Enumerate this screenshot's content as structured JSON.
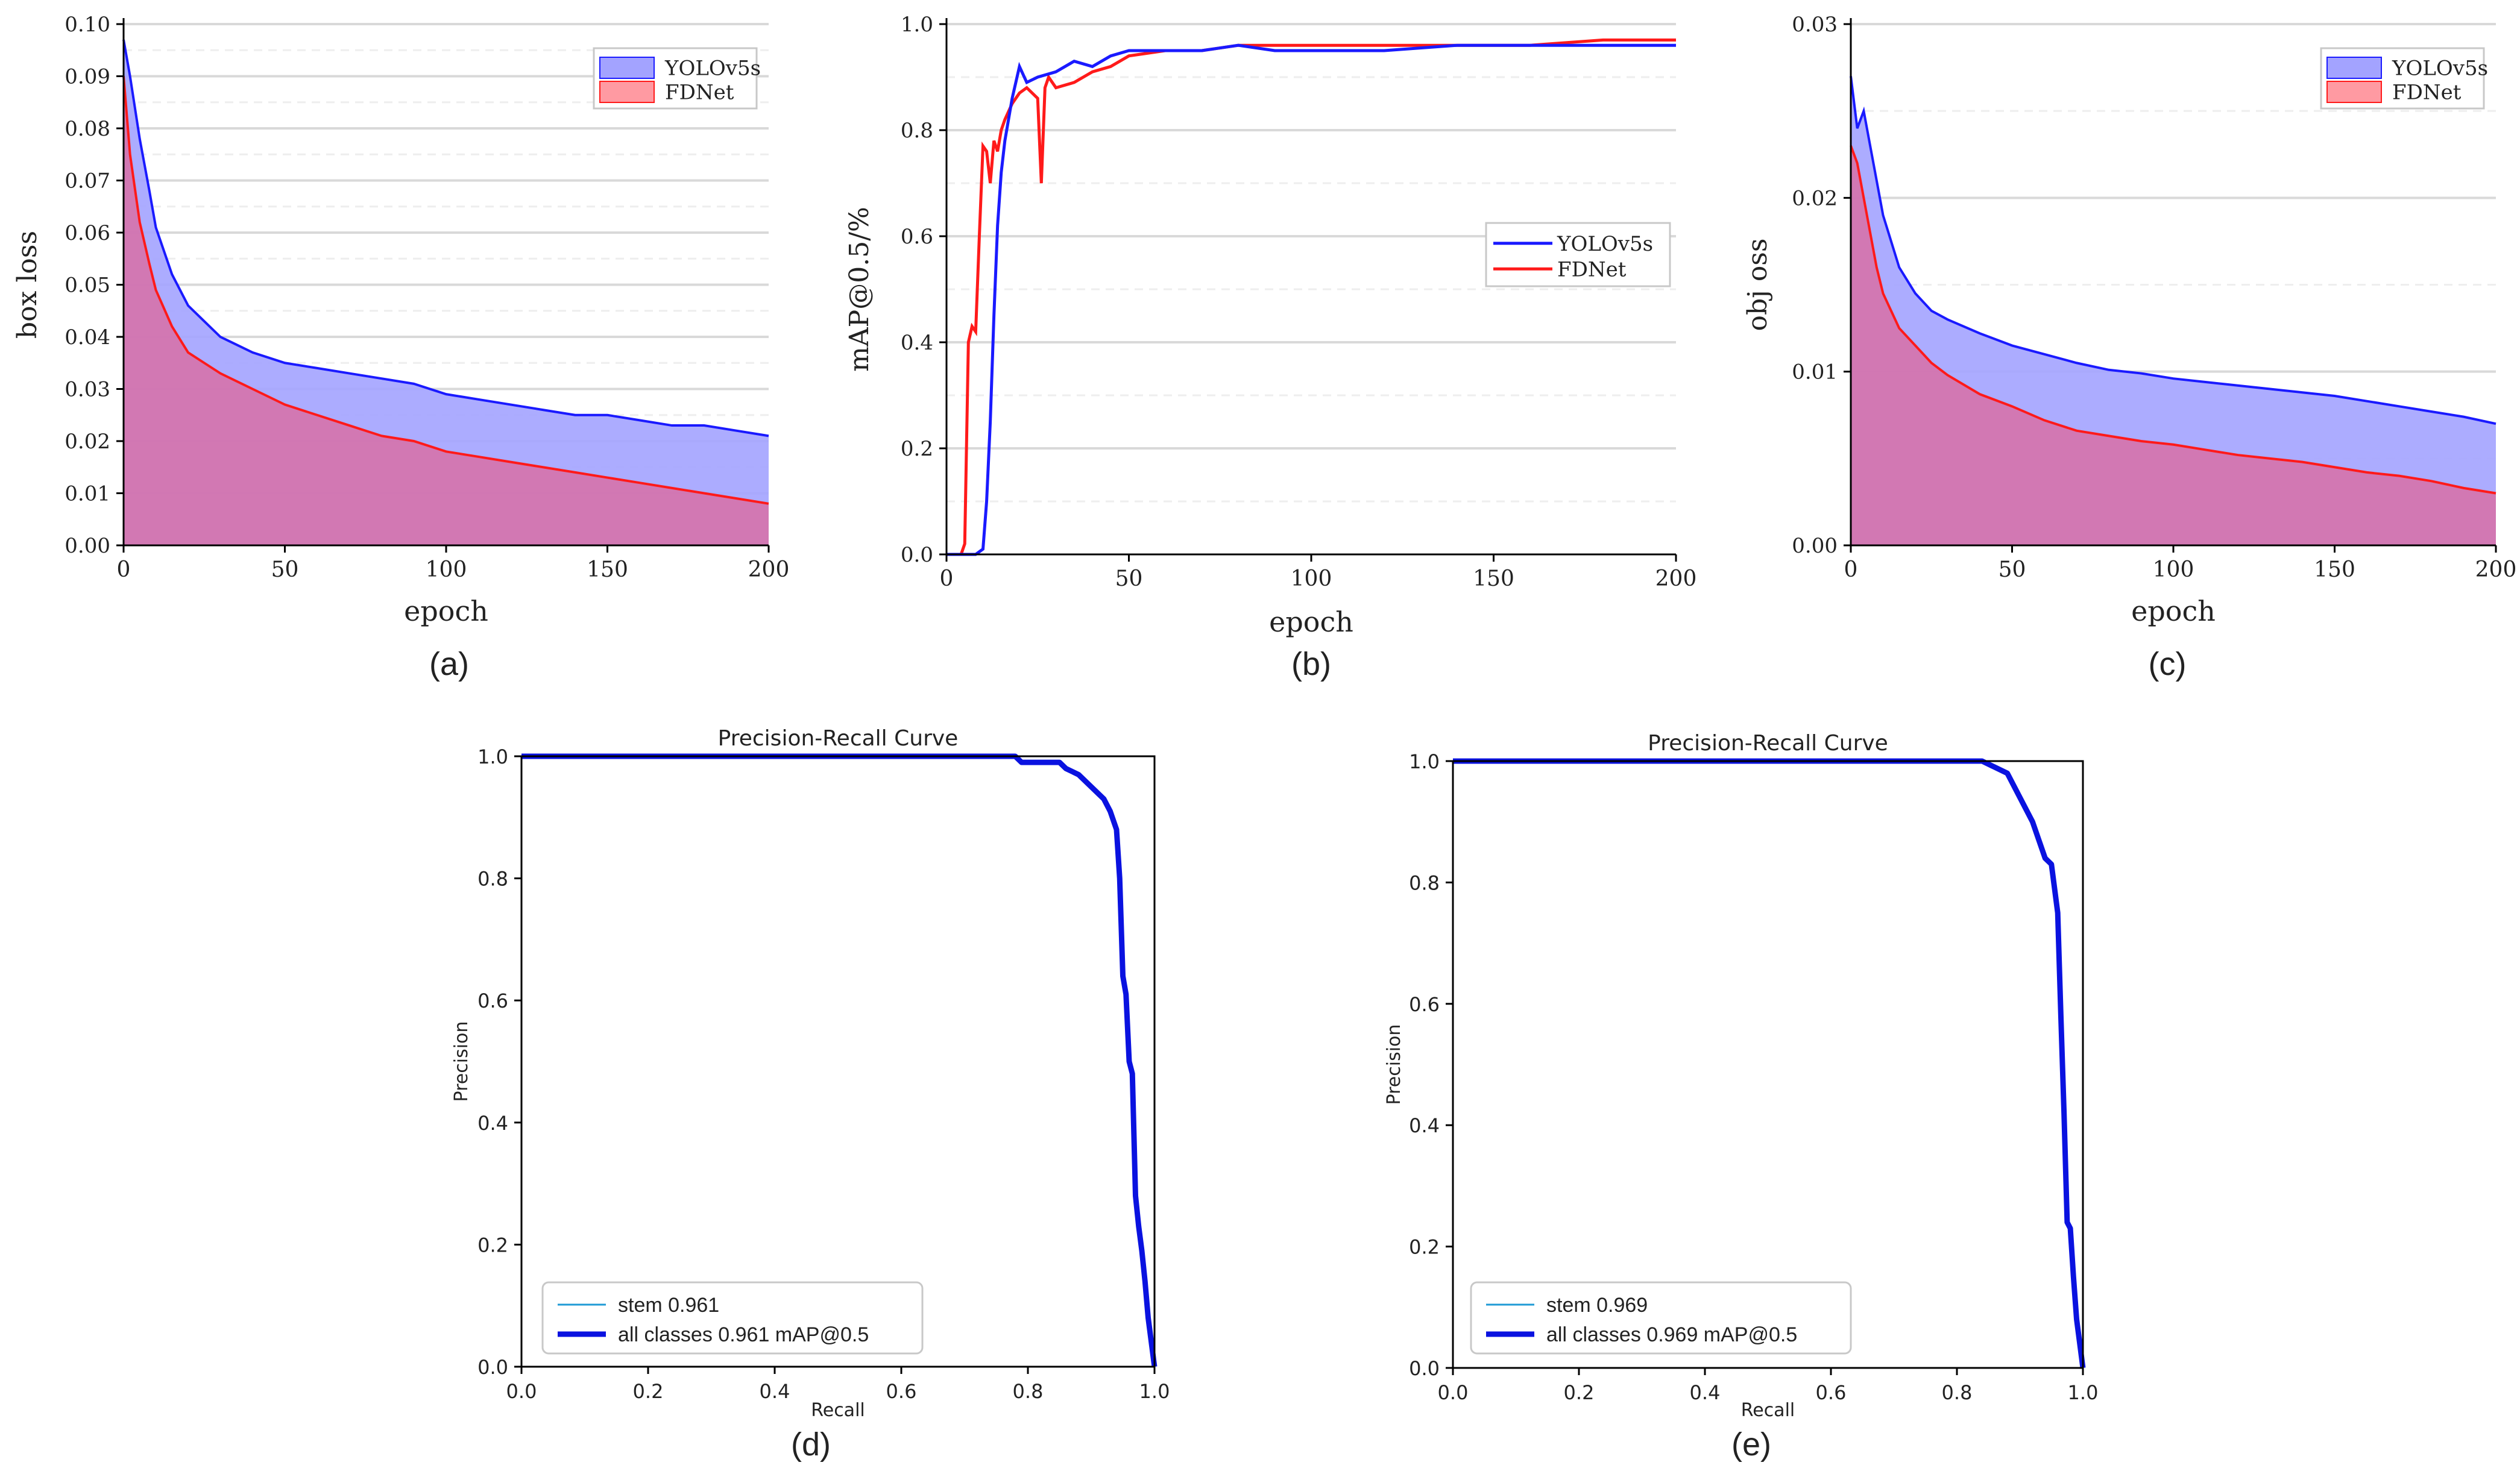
{
  "colors": {
    "yolo": "#1a1aff",
    "fdnet": "#ff1a1a",
    "yolo_fill": "#a3a3ff",
    "fdnet_fill": "#ff9aa2",
    "overlap_fill": "#d86ea6",
    "grid": "#d9d9d9",
    "pr_curve": "#0a12e0",
    "stem": "#1f9ad6"
  },
  "chart_data": [
    {
      "id": "a",
      "caption": "(a)",
      "type": "area",
      "xlabel": "epoch",
      "ylabel": "box loss",
      "xlim": [
        0,
        200
      ],
      "ylim": [
        0,
        0.1
      ],
      "xticks": [
        "0",
        "50",
        "100",
        "150",
        "200"
      ],
      "yticks": [
        "0.00",
        "0.01",
        "0.02",
        "0.03",
        "0.04",
        "0.05",
        "0.06",
        "0.07",
        "0.08",
        "0.09",
        "0.10"
      ],
      "legend": [
        "YOLOv5s",
        "FDNet"
      ],
      "legend_position": "top-right",
      "series": [
        {
          "name": "YOLOv5s",
          "x": [
            0,
            2,
            5,
            8,
            10,
            15,
            20,
            25,
            30,
            40,
            50,
            60,
            70,
            80,
            90,
            100,
            110,
            120,
            130,
            140,
            150,
            160,
            170,
            180,
            190,
            200
          ],
          "values": [
            0.097,
            0.09,
            0.078,
            0.068,
            0.061,
            0.052,
            0.046,
            0.043,
            0.04,
            0.037,
            0.035,
            0.034,
            0.033,
            0.032,
            0.031,
            0.029,
            0.028,
            0.027,
            0.026,
            0.025,
            0.025,
            0.024,
            0.023,
            0.023,
            0.022,
            0.021
          ]
        },
        {
          "name": "FDNet",
          "x": [
            0,
            2,
            5,
            8,
            10,
            15,
            20,
            25,
            30,
            40,
            50,
            60,
            70,
            80,
            90,
            100,
            110,
            120,
            130,
            140,
            150,
            160,
            170,
            180,
            190,
            200
          ],
          "values": [
            0.09,
            0.075,
            0.062,
            0.054,
            0.049,
            0.042,
            0.037,
            0.035,
            0.033,
            0.03,
            0.027,
            0.025,
            0.023,
            0.021,
            0.02,
            0.018,
            0.017,
            0.016,
            0.015,
            0.014,
            0.013,
            0.012,
            0.011,
            0.01,
            0.009,
            0.008
          ]
        }
      ]
    },
    {
      "id": "b",
      "caption": "(b)",
      "type": "line",
      "xlabel": "epoch",
      "ylabel": "mAP@0.5/%",
      "xlim": [
        0,
        200
      ],
      "ylim": [
        0,
        1.0
      ],
      "xticks": [
        "0",
        "50",
        "100",
        "150",
        "200"
      ],
      "yticks": [
        "0.0",
        "0.2",
        "0.4",
        "0.6",
        "0.8",
        "1.0"
      ],
      "legend": [
        "YOLOv5s",
        "FDNet"
      ],
      "legend_position": "center-right",
      "series": [
        {
          "name": "YOLOv5s",
          "x": [
            0,
            8,
            10,
            11,
            12,
            13,
            14,
            15,
            16,
            18,
            20,
            22,
            25,
            30,
            35,
            40,
            45,
            50,
            60,
            70,
            80,
            90,
            100,
            120,
            140,
            160,
            180,
            200
          ],
          "values": [
            0,
            0,
            0.01,
            0.1,
            0.25,
            0.45,
            0.62,
            0.72,
            0.78,
            0.86,
            0.92,
            0.89,
            0.9,
            0.91,
            0.93,
            0.92,
            0.94,
            0.95,
            0.95,
            0.95,
            0.96,
            0.95,
            0.95,
            0.95,
            0.96,
            0.96,
            0.96,
            0.96
          ]
        },
        {
          "name": "FDNet",
          "x": [
            0,
            4,
            5,
            6,
            7,
            8,
            9,
            10,
            11,
            12,
            13,
            14,
            15,
            16,
            18,
            20,
            22,
            25,
            26,
            27,
            28,
            30,
            35,
            40,
            45,
            50,
            60,
            70,
            80,
            100,
            120,
            140,
            160,
            180,
            200
          ],
          "values": [
            0,
            0,
            0.02,
            0.4,
            0.43,
            0.42,
            0.6,
            0.77,
            0.76,
            0.7,
            0.78,
            0.76,
            0.8,
            0.82,
            0.85,
            0.87,
            0.88,
            0.86,
            0.7,
            0.88,
            0.9,
            0.88,
            0.89,
            0.91,
            0.92,
            0.94,
            0.95,
            0.95,
            0.96,
            0.96,
            0.96,
            0.96,
            0.96,
            0.97,
            0.97
          ]
        }
      ]
    },
    {
      "id": "c",
      "caption": "(c)",
      "type": "area",
      "xlabel": "epoch",
      "ylabel": "obj oss",
      "xlim": [
        0,
        200
      ],
      "ylim": [
        0,
        0.03
      ],
      "xticks": [
        "0",
        "50",
        "100",
        "150",
        "200"
      ],
      "yticks": [
        "0.00",
        "0.01",
        "0.02",
        "0.03"
      ],
      "legend": [
        "YOLOv5s",
        "FDNet"
      ],
      "legend_position": "top-right",
      "series": [
        {
          "name": "YOLOv5s",
          "x": [
            0,
            2,
            4,
            6,
            8,
            10,
            15,
            20,
            25,
            30,
            40,
            50,
            60,
            70,
            80,
            90,
            100,
            110,
            120,
            130,
            140,
            150,
            160,
            170,
            180,
            190,
            200
          ],
          "values": [
            0.027,
            0.024,
            0.025,
            0.023,
            0.021,
            0.019,
            0.016,
            0.0145,
            0.0135,
            0.013,
            0.0122,
            0.0115,
            0.011,
            0.0105,
            0.0101,
            0.0099,
            0.0096,
            0.0094,
            0.0092,
            0.009,
            0.0088,
            0.0086,
            0.0083,
            0.008,
            0.0077,
            0.0074,
            0.007
          ]
        },
        {
          "name": "FDNet",
          "x": [
            0,
            2,
            4,
            6,
            8,
            10,
            15,
            20,
            25,
            30,
            40,
            50,
            60,
            70,
            80,
            90,
            100,
            110,
            120,
            130,
            140,
            150,
            160,
            170,
            180,
            190,
            200
          ],
          "values": [
            0.023,
            0.022,
            0.02,
            0.018,
            0.016,
            0.0145,
            0.0125,
            0.0115,
            0.0105,
            0.0098,
            0.0087,
            0.008,
            0.0072,
            0.0066,
            0.0063,
            0.006,
            0.0058,
            0.0055,
            0.0052,
            0.005,
            0.0048,
            0.0045,
            0.0042,
            0.004,
            0.0037,
            0.0033,
            0.003
          ]
        }
      ]
    },
    {
      "id": "d",
      "caption": "(d)",
      "type": "line",
      "title": "Precision-Recall Curve",
      "xlabel": "Recall",
      "ylabel": "Precision",
      "xlim": [
        0,
        1.0
      ],
      "ylim": [
        0,
        1.0
      ],
      "xticks": [
        "0.0",
        "0.2",
        "0.4",
        "0.6",
        "0.8",
        "1.0"
      ],
      "yticks": [
        "0.0",
        "0.2",
        "0.4",
        "0.6",
        "0.8",
        "1.0"
      ],
      "legend": [
        "stem 0.961",
        "all classes 0.961 mAP@0.5"
      ],
      "legend_position": "bottom-left",
      "series": [
        {
          "name": "all classes 0.961 mAP@0.5",
          "x": [
            0,
            0.78,
            0.79,
            0.85,
            0.86,
            0.88,
            0.9,
            0.92,
            0.93,
            0.94,
            0.945,
            0.95,
            0.955,
            0.96,
            0.965,
            0.97,
            0.975,
            0.98,
            0.985,
            0.99,
            1.0
          ],
          "values": [
            1.0,
            1.0,
            0.99,
            0.99,
            0.98,
            0.97,
            0.95,
            0.93,
            0.91,
            0.88,
            0.8,
            0.64,
            0.61,
            0.5,
            0.48,
            0.28,
            0.23,
            0.19,
            0.14,
            0.08,
            0.0
          ]
        }
      ]
    },
    {
      "id": "e",
      "caption": "(e)",
      "type": "line",
      "title": "Precision-Recall Curve",
      "xlabel": "Recall",
      "ylabel": "Precision",
      "xlim": [
        0,
        1.0
      ],
      "ylim": [
        0,
        1.0
      ],
      "xticks": [
        "0.0",
        "0.2",
        "0.4",
        "0.6",
        "0.8",
        "1.0"
      ],
      "yticks": [
        "0.0",
        "0.2",
        "0.4",
        "0.6",
        "0.8",
        "1.0"
      ],
      "legend": [
        "stem 0.969",
        "all classes 0.969 mAP@0.5"
      ],
      "legend_position": "bottom-left",
      "series": [
        {
          "name": "all classes 0.969 mAP@0.5",
          "x": [
            0,
            0.84,
            0.86,
            0.88,
            0.89,
            0.9,
            0.91,
            0.92,
            0.93,
            0.94,
            0.95,
            0.96,
            0.965,
            0.97,
            0.975,
            0.98,
            0.985,
            0.99,
            1.0
          ],
          "values": [
            1.0,
            1.0,
            0.99,
            0.98,
            0.96,
            0.94,
            0.92,
            0.9,
            0.87,
            0.84,
            0.83,
            0.75,
            0.58,
            0.42,
            0.24,
            0.23,
            0.15,
            0.08,
            0.0
          ]
        }
      ]
    }
  ]
}
